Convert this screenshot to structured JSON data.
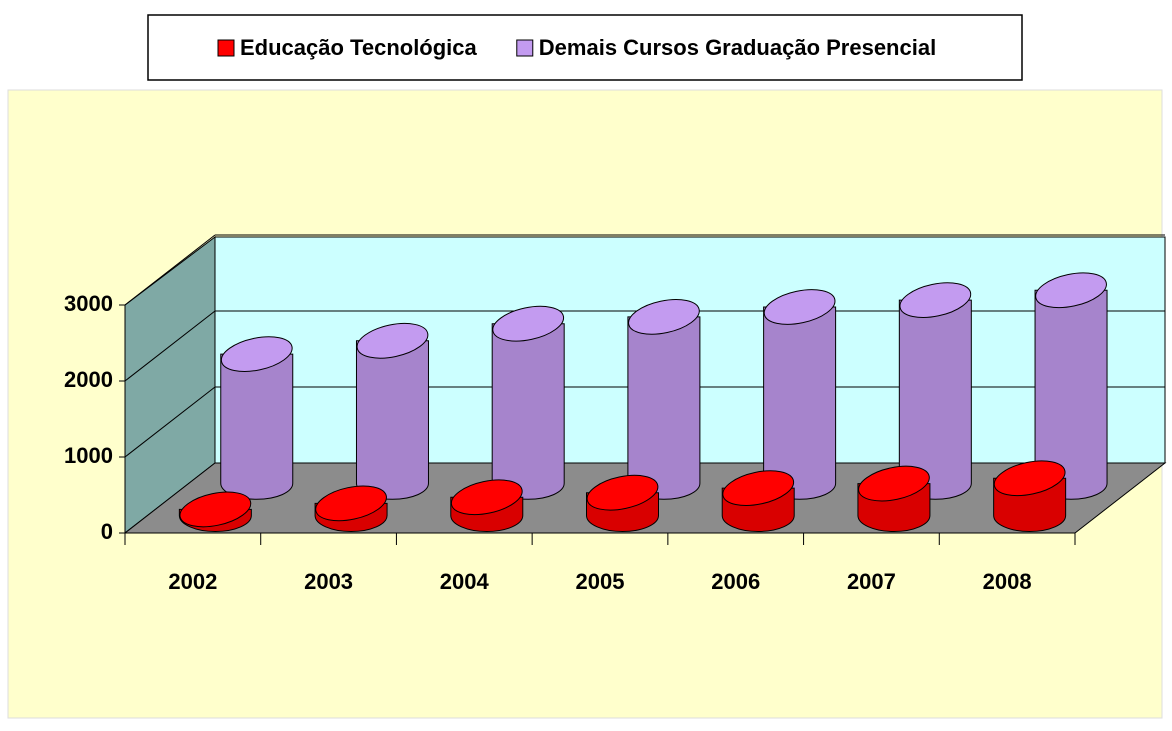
{
  "chart_data": {
    "type": "bar3d",
    "categories": [
      "2002",
      "2003",
      "2004",
      "2005",
      "2006",
      "2007",
      "2008"
    ],
    "series": [
      {
        "name": "Educação Tecnológica",
        "color": "#ff0000",
        "values": [
          80,
          160,
          240,
          300,
          360,
          420,
          490
        ]
      },
      {
        "name": "Demais Cursos Graduação Presencial",
        "color": "#c39bf0",
        "values": [
          1700,
          1875,
          2100,
          2190,
          2320,
          2410,
          2540
        ]
      }
    ],
    "ylim": [
      0,
      3000
    ],
    "yticks": [
      0,
      1000,
      2000,
      3000
    ],
    "grid": true,
    "legend": "top"
  }
}
